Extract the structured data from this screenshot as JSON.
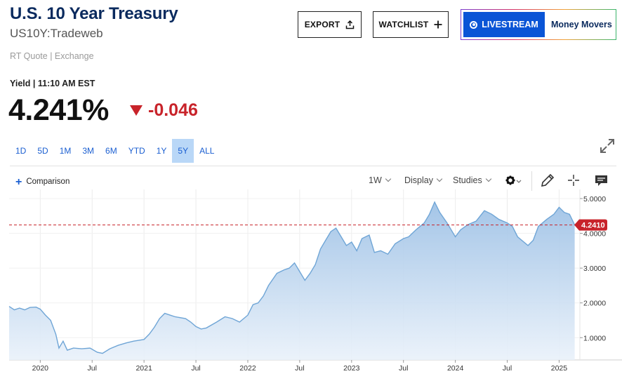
{
  "header": {
    "title": "U.S. 10 Year Treasury",
    "subtitle": "US10Y:Tradeweb",
    "quote_source": "RT Quote | Exchange"
  },
  "buttons": {
    "export": "EXPORT",
    "watchlist": "WATCHLIST",
    "livestream": "LIVESTREAM",
    "money_movers": "Money Movers"
  },
  "quote": {
    "yield_label": "Yield | 11:10 AM EST",
    "price": "4.241%",
    "change": "-0.046",
    "change_color": "#c8232a"
  },
  "ranges": [
    {
      "label": "1D"
    },
    {
      "label": "5D"
    },
    {
      "label": "1M"
    },
    {
      "label": "3M"
    },
    {
      "label": "6M"
    },
    {
      "label": "YTD"
    },
    {
      "label": "1Y"
    },
    {
      "label": "5Y",
      "active": true
    },
    {
      "label": "ALL"
    }
  ],
  "toolbar": {
    "comparison": "Comparison",
    "interval": "1W",
    "display": "Display",
    "studies": "Studies"
  },
  "icons": [
    "export-icon",
    "plus-icon",
    "livestream-icon",
    "expand-icon",
    "gear-icon",
    "pencil-icon",
    "crosshair-icon",
    "comment-icon"
  ],
  "chart_data": {
    "type": "area",
    "series": [
      {
        "values": [
          [
            2019.7,
            1.9
          ],
          [
            2019.75,
            1.8
          ],
          [
            2019.8,
            1.85
          ],
          [
            2019.85,
            1.8
          ],
          [
            2019.9,
            1.87
          ],
          [
            2019.96,
            1.88
          ],
          [
            2020.0,
            1.82
          ],
          [
            2020.05,
            1.65
          ],
          [
            2020.1,
            1.5
          ],
          [
            2020.15,
            1.1
          ],
          [
            2020.18,
            0.7
          ],
          [
            2020.22,
            0.9
          ],
          [
            2020.26,
            0.64
          ],
          [
            2020.32,
            0.7
          ],
          [
            2020.4,
            0.68
          ],
          [
            2020.48,
            0.7
          ],
          [
            2020.55,
            0.58
          ],
          [
            2020.6,
            0.55
          ],
          [
            2020.67,
            0.68
          ],
          [
            2020.75,
            0.78
          ],
          [
            2020.83,
            0.85
          ],
          [
            2020.9,
            0.9
          ],
          [
            2021.0,
            0.95
          ],
          [
            2021.05,
            1.1
          ],
          [
            2021.1,
            1.3
          ],
          [
            2021.15,
            1.55
          ],
          [
            2021.2,
            1.7
          ],
          [
            2021.25,
            1.65
          ],
          [
            2021.3,
            1.6
          ],
          [
            2021.4,
            1.55
          ],
          [
            2021.45,
            1.45
          ],
          [
            2021.5,
            1.32
          ],
          [
            2021.55,
            1.25
          ],
          [
            2021.6,
            1.28
          ],
          [
            2021.7,
            1.45
          ],
          [
            2021.78,
            1.6
          ],
          [
            2021.85,
            1.55
          ],
          [
            2021.92,
            1.45
          ],
          [
            2022.0,
            1.65
          ],
          [
            2022.05,
            1.95
          ],
          [
            2022.1,
            2.0
          ],
          [
            2022.15,
            2.2
          ],
          [
            2022.2,
            2.5
          ],
          [
            2022.28,
            2.85
          ],
          [
            2022.35,
            2.95
          ],
          [
            2022.4,
            3.0
          ],
          [
            2022.45,
            3.15
          ],
          [
            2022.5,
            2.9
          ],
          [
            2022.55,
            2.65
          ],
          [
            2022.6,
            2.85
          ],
          [
            2022.65,
            3.1
          ],
          [
            2022.7,
            3.55
          ],
          [
            2022.75,
            3.8
          ],
          [
            2022.8,
            4.05
          ],
          [
            2022.85,
            4.15
          ],
          [
            2022.9,
            3.9
          ],
          [
            2022.95,
            3.65
          ],
          [
            2023.0,
            3.75
          ],
          [
            2023.05,
            3.5
          ],
          [
            2023.1,
            3.85
          ],
          [
            2023.17,
            3.95
          ],
          [
            2023.22,
            3.45
          ],
          [
            2023.28,
            3.5
          ],
          [
            2023.35,
            3.4
          ],
          [
            2023.42,
            3.7
          ],
          [
            2023.5,
            3.85
          ],
          [
            2023.55,
            3.9
          ],
          [
            2023.62,
            4.1
          ],
          [
            2023.7,
            4.3
          ],
          [
            2023.75,
            4.55
          ],
          [
            2023.8,
            4.9
          ],
          [
            2023.85,
            4.6
          ],
          [
            2023.92,
            4.3
          ],
          [
            2024.0,
            3.9
          ],
          [
            2024.05,
            4.1
          ],
          [
            2024.12,
            4.25
          ],
          [
            2024.2,
            4.35
          ],
          [
            2024.28,
            4.65
          ],
          [
            2024.35,
            4.55
          ],
          [
            2024.42,
            4.4
          ],
          [
            2024.5,
            4.3
          ],
          [
            2024.55,
            4.2
          ],
          [
            2024.6,
            3.9
          ],
          [
            2024.7,
            3.65
          ],
          [
            2024.75,
            3.8
          ],
          [
            2024.8,
            4.2
          ],
          [
            2024.88,
            4.4
          ],
          [
            2024.95,
            4.55
          ],
          [
            2025.0,
            4.75
          ],
          [
            2025.05,
            4.6
          ],
          [
            2025.1,
            4.55
          ],
          [
            2025.15,
            4.24
          ]
        ]
      }
    ],
    "x_ticks": [
      {
        "x": 2020.0,
        "label": "2020"
      },
      {
        "x": 2020.5,
        "label": "Jul"
      },
      {
        "x": 2021.0,
        "label": "2021"
      },
      {
        "x": 2021.5,
        "label": "Jul"
      },
      {
        "x": 2022.0,
        "label": "2022"
      },
      {
        "x": 2022.5,
        "label": "Jul"
      },
      {
        "x": 2023.0,
        "label": "2023"
      },
      {
        "x": 2023.5,
        "label": "Jul"
      },
      {
        "x": 2024.0,
        "label": "2024"
      },
      {
        "x": 2024.5,
        "label": "Jul"
      },
      {
        "x": 2025.0,
        "label": "2025"
      }
    ],
    "y_ticks": [
      {
        "y": 1,
        "label": "1.0000"
      },
      {
        "y": 2,
        "label": "2.0000"
      },
      {
        "y": 3,
        "label": "3.0000"
      },
      {
        "y": 4,
        "label": "4.0000"
      },
      {
        "y": 5,
        "label": "5.0000"
      }
    ],
    "current_value": 4.241,
    "current_label": "4.2410",
    "xlim": [
      2019.7,
      2025.2
    ],
    "ylim": [
      0.36,
      5.0
    ],
    "grid": true,
    "line_color": "#6fa5d6",
    "fill_color": "#a9c9ea",
    "marker_color": "#c8232a"
  }
}
